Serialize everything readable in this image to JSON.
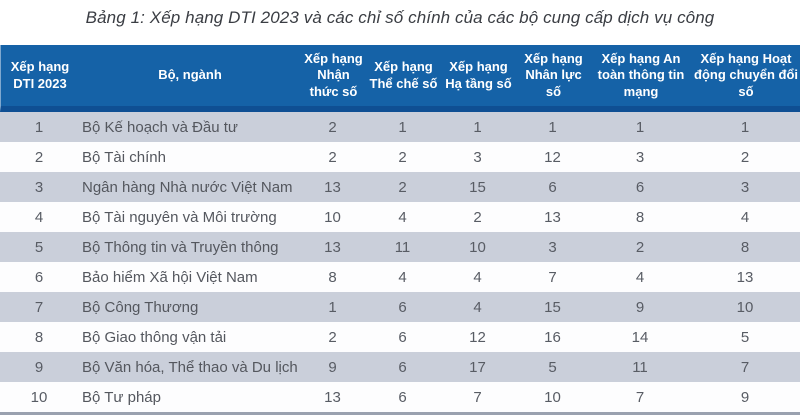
{
  "title": "Bảng 1: Xếp hạng DTI 2023 và các chỉ số chính của các bộ cung cấp dịch vụ công",
  "table": {
    "columns": [
      {
        "label": "Xếp hạng DTI 2023"
      },
      {
        "label": "Bộ, ngành"
      },
      {
        "label": "Xếp hạng Nhận thức số"
      },
      {
        "label": "Xếp hạng Thể chế số"
      },
      {
        "label": "Xếp hạng Hạ tầng số"
      },
      {
        "label": "Xếp hạng Nhân lực số"
      },
      {
        "label": "Xếp hạng An toàn thông tin mạng"
      },
      {
        "label": "Xếp hạng Hoạt động chuyển đổi số"
      }
    ],
    "rows": [
      [
        "1",
        "Bộ Kế hoạch và Đầu tư",
        "2",
        "1",
        "1",
        "1",
        "1",
        "1"
      ],
      [
        "2",
        "Bộ Tài chính",
        "2",
        "2",
        "3",
        "12",
        "3",
        "2"
      ],
      [
        "3",
        "Ngân hàng Nhà nước Việt Nam",
        "13",
        "2",
        "15",
        "6",
        "6",
        "3"
      ],
      [
        "4",
        "Bộ Tài nguyên và Môi trường",
        "10",
        "4",
        "2",
        "13",
        "8",
        "4"
      ],
      [
        "5",
        "Bộ Thông tin và Truyền thông",
        "13",
        "11",
        "10",
        "3",
        "2",
        "8"
      ],
      [
        "6",
        "Bảo hiểm Xã hội Việt Nam",
        "8",
        "4",
        "4",
        "7",
        "4",
        "13"
      ],
      [
        "7",
        "Bộ Công Thương",
        "1",
        "6",
        "4",
        "15",
        "9",
        "10"
      ],
      [
        "8",
        "Bộ Giao thông vận tải",
        "2",
        "6",
        "12",
        "16",
        "14",
        "5"
      ],
      [
        "9",
        "Bộ Văn hóa, Thể thao và Du lịch",
        "9",
        "6",
        "17",
        "5",
        "11",
        "7"
      ],
      [
        "10",
        "Bộ Tư pháp",
        "13",
        "6",
        "7",
        "10",
        "7",
        "9"
      ]
    ]
  },
  "colors": {
    "header_bg": "#1562a7",
    "header_bottom_strip": "#0f4f93",
    "row_odd_bg": "#cacfda",
    "row_even_bg": "#fdfdfe",
    "bottom_border": "#9aa1af",
    "header_text": "#ffffff",
    "body_text": "#585c64",
    "title_text": "#3a3d43"
  }
}
